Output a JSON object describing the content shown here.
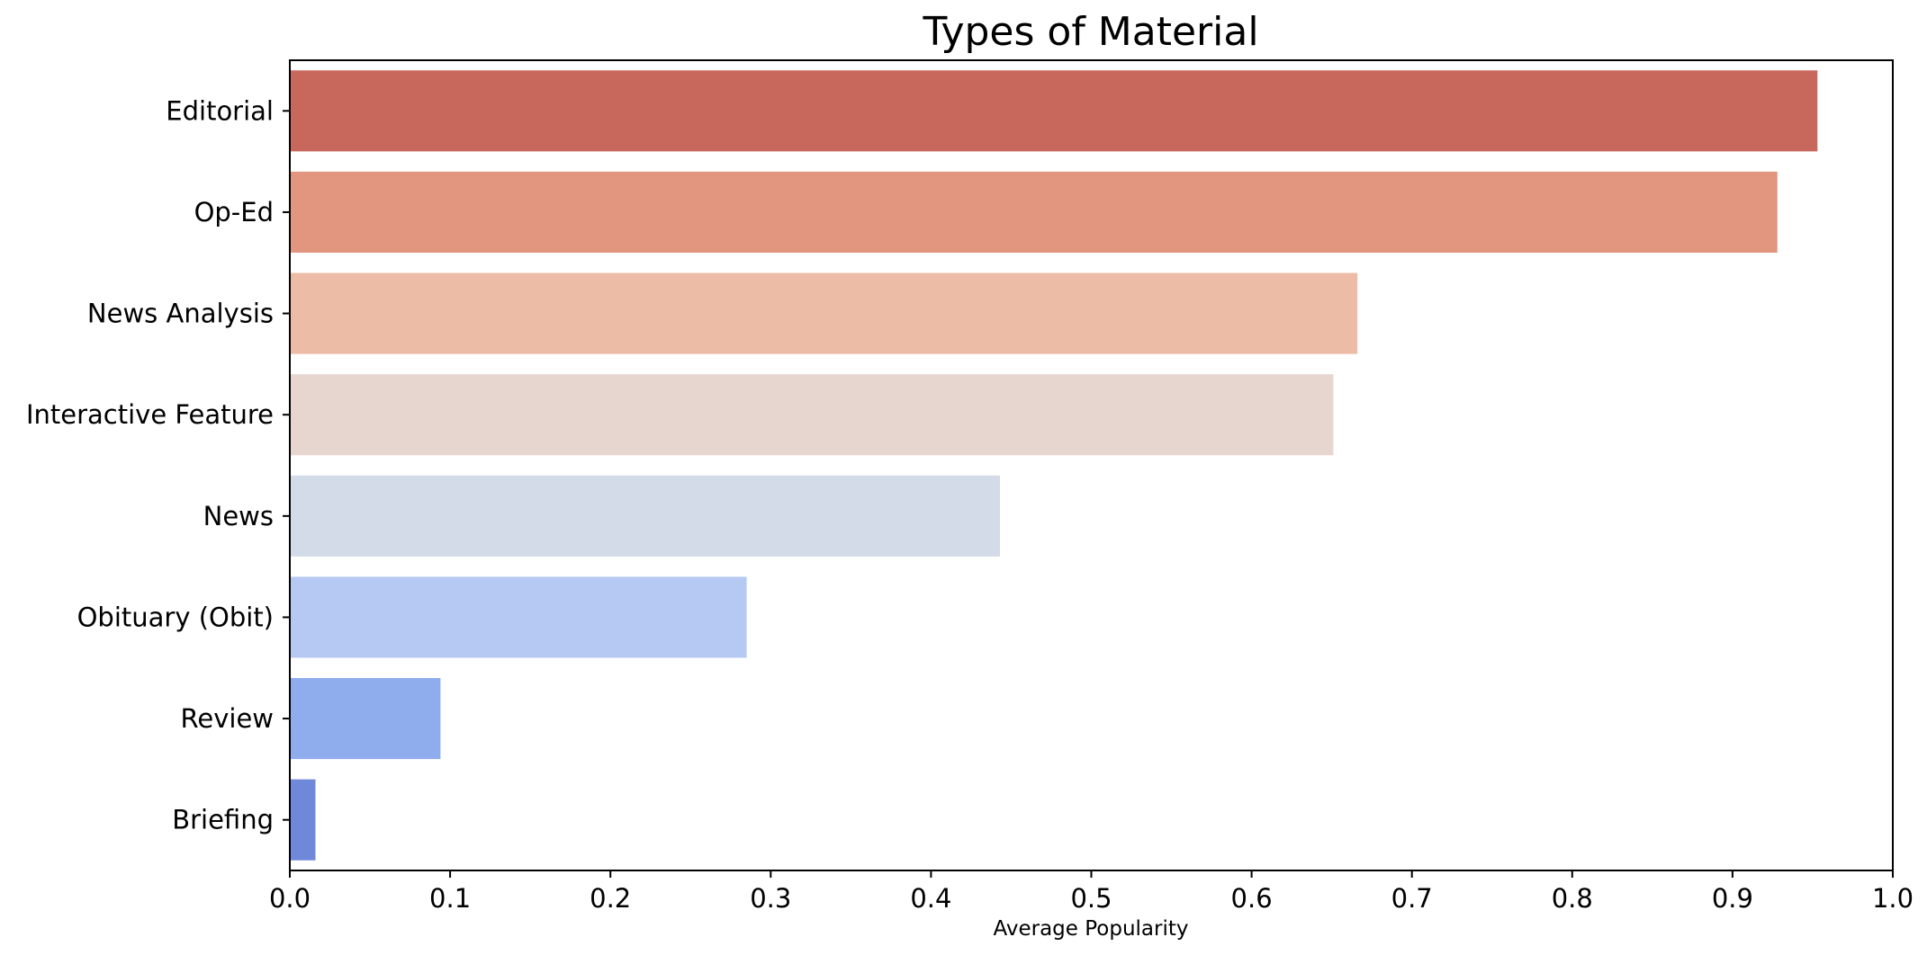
{
  "chart_data": {
    "type": "bar",
    "orientation": "horizontal",
    "title": "Types of Material",
    "xlabel": "Average Popularity",
    "ylabel": "",
    "categories": [
      "Editorial",
      "Op-Ed",
      "News Analysis",
      "Interactive Feature",
      "News",
      "Obituary (Obit)",
      "Review",
      "Briefing"
    ],
    "values": [
      0.953,
      0.928,
      0.666,
      0.651,
      0.443,
      0.285,
      0.094,
      0.016
    ],
    "bar_colors": [
      "#c8685c",
      "#e2967f",
      "#ecbca7",
      "#e6d6cf",
      "#d3dbe9",
      "#b6c9f2",
      "#8faced",
      "#7088da"
    ],
    "xlim": [
      0,
      1.0
    ],
    "x_ticks": [
      "0.0",
      "0.1",
      "0.2",
      "0.3",
      "0.4",
      "0.5",
      "0.6",
      "0.7",
      "0.8",
      "0.9",
      "1.0"
    ],
    "grid": false,
    "legend": "none"
  }
}
